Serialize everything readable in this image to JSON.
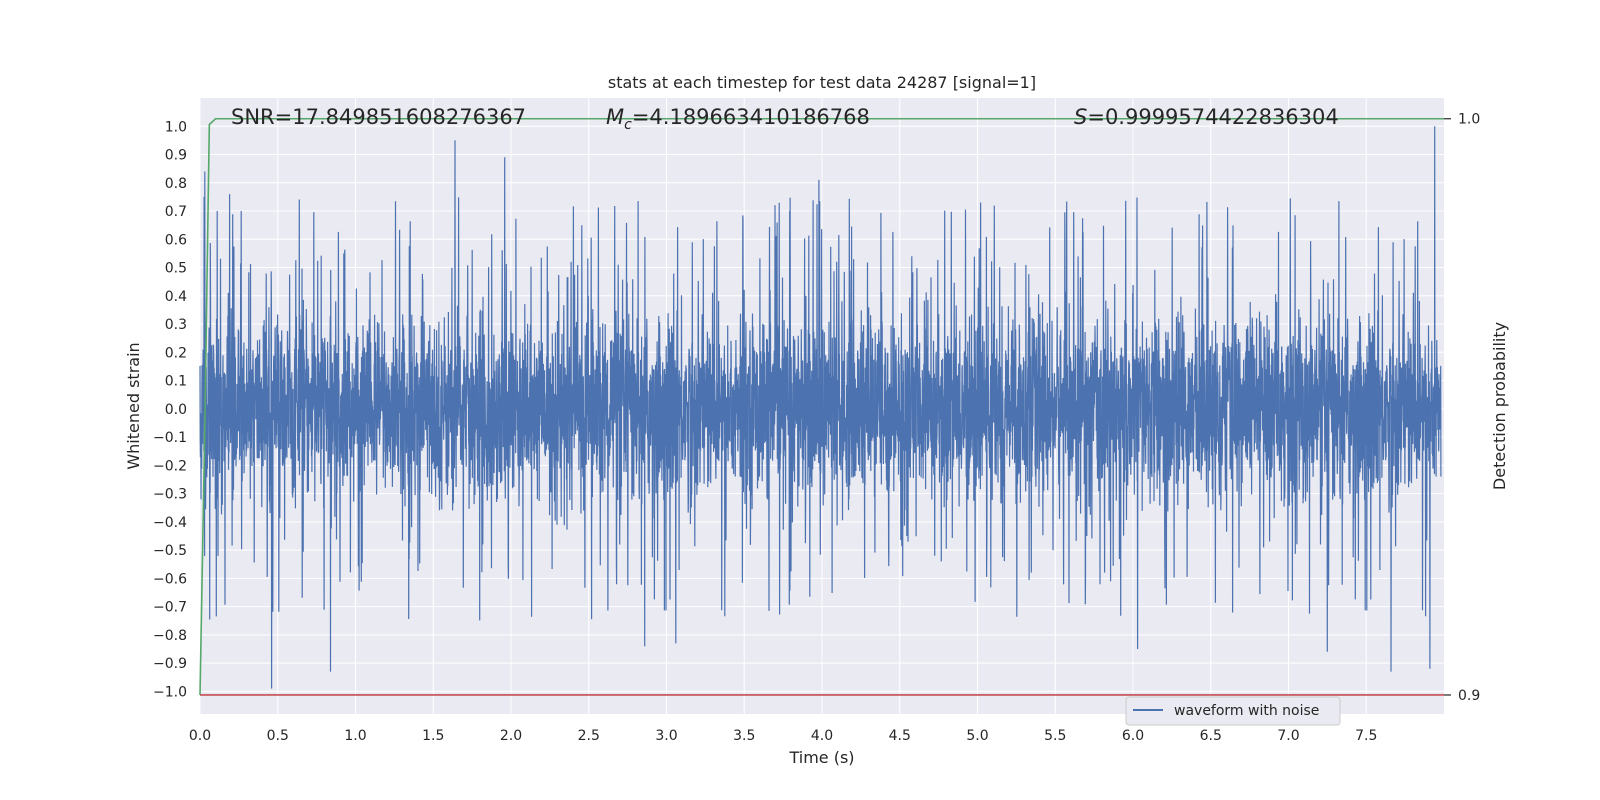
{
  "chart_data": {
    "type": "line",
    "title": "stats at each timestep for test data 24287 [signal=1]",
    "xlabel": "Time (s)",
    "ylabel": "Whitened strain",
    "ylabel_right": "Detection probability",
    "xlim": [
      0.0,
      8.0
    ],
    "ylim": [
      -1.08,
      1.1
    ],
    "ylim_right": [
      0.8967,
      1.0036
    ],
    "x_ticks": [
      "0.0",
      "0.5",
      "1.0",
      "1.5",
      "2.0",
      "2.5",
      "3.0",
      "3.5",
      "4.0",
      "4.5",
      "5.0",
      "5.5",
      "6.0",
      "6.5",
      "7.0",
      "7.5"
    ],
    "x_tick_values": [
      0.0,
      0.5,
      1.0,
      1.5,
      2.0,
      2.5,
      3.0,
      3.5,
      4.0,
      4.5,
      5.0,
      5.5,
      6.0,
      6.5,
      7.0,
      7.5
    ],
    "y_ticks": [
      "1.0",
      "0.9",
      "0.8",
      "0.7",
      "0.6",
      "0.5",
      "0.4",
      "0.3",
      "0.2",
      "0.1",
      "0.0",
      "−0.1",
      "−0.2",
      "−0.3",
      "−0.4",
      "−0.5",
      "−0.6",
      "−0.7",
      "−0.8",
      "−0.9",
      "−1.0"
    ],
    "y_tick_values": [
      1.0,
      0.9,
      0.8,
      0.7,
      0.6,
      0.5,
      0.4,
      0.3,
      0.2,
      0.1,
      0.0,
      -0.1,
      -0.2,
      -0.3,
      -0.4,
      -0.5,
      -0.6,
      -0.7,
      -0.8,
      -0.9,
      -1.0
    ],
    "y_ticks_right": [
      "1.0",
      "0.9"
    ],
    "y_tick_values_right": [
      1.0,
      0.9
    ],
    "annotations": {
      "snr": "SNR=17.849851608276367",
      "mc_symbol": "M",
      "mc_sub": "c",
      "mc_value": "=4.189663410186768",
      "s_symbol": "S",
      "s_value": "=0.9999574422836304"
    },
    "legend": {
      "entries": [
        "waveform with noise"
      ],
      "position": "lower-right"
    },
    "grid": true,
    "colors": {
      "background": "#eaeaf2",
      "grid": "#ffffff",
      "waveform": "#4c72b0",
      "probability": "#55a868",
      "threshold": "#c44e52"
    },
    "series": [
      {
        "name": "waveform with noise",
        "axis": "left",
        "note_values": "noise-like whitened strain, 8 s sampled; amplitude mostly within ±0.4 with spikes up to +1.0 and down to −0.99",
        "peaks": [
          {
            "x": 0.03,
            "y": 0.84
          },
          {
            "x": 0.11,
            "y": 0.7
          },
          {
            "x": 0.19,
            "y": 0.76
          },
          {
            "x": 0.46,
            "y": -0.99
          },
          {
            "x": 0.84,
            "y": -0.93
          },
          {
            "x": 1.64,
            "y": 0.95
          },
          {
            "x": 1.96,
            "y": 0.89
          },
          {
            "x": 2.86,
            "y": -0.84
          },
          {
            "x": 3.06,
            "y": -0.83
          },
          {
            "x": 3.98,
            "y": 0.81
          },
          {
            "x": 6.03,
            "y": -0.85
          },
          {
            "x": 7.25,
            "y": -0.86
          },
          {
            "x": 7.66,
            "y": -0.93
          },
          {
            "x": 7.91,
            "y": -0.92
          },
          {
            "x": 7.94,
            "y": 1.0
          }
        ]
      },
      {
        "name": "detection probability",
        "axis": "right",
        "points": [
          {
            "x": 0.0,
            "y": 0.9
          },
          {
            "x": 0.03,
            "y": 0.945
          },
          {
            "x": 0.06,
            "y": 0.999
          },
          {
            "x": 0.1,
            "y": 1.0
          },
          {
            "x": 8.0,
            "y": 1.0
          }
        ]
      },
      {
        "name": "threshold",
        "axis": "right",
        "points": [
          {
            "x": 0.0,
            "y": 0.9
          },
          {
            "x": 8.0,
            "y": 0.9
          }
        ]
      }
    ]
  }
}
